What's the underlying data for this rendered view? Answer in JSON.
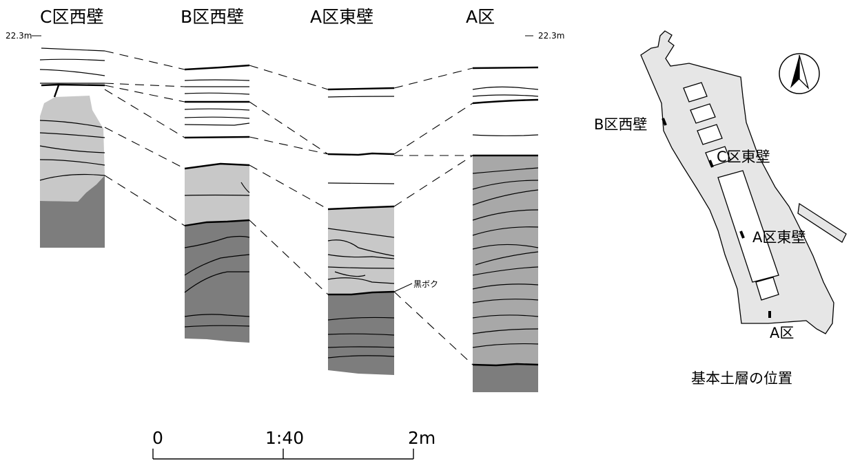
{
  "columns": {
    "c_west": "C区西壁",
    "b_west": "B区西壁",
    "a_east": "A区東壁",
    "a": "A区"
  },
  "elevation": {
    "left": "22.3m",
    "right": "22.3m"
  },
  "annotation": "黒ボク",
  "scale_bar": {
    "start": "0",
    "ratio": "1:40",
    "end": "2m"
  },
  "map": {
    "labels": {
      "b_west": "B区西壁",
      "c_east": "C区東壁",
      "a_east": "A区東壁",
      "a": "A区"
    },
    "caption": "基本土層の位置",
    "north_icon": "north-arrow-icon"
  },
  "colors": {
    "light_gray": "#c8c8c8",
    "dark_gray": "#7d7d7d",
    "map_fill": "#e6e6e6"
  }
}
